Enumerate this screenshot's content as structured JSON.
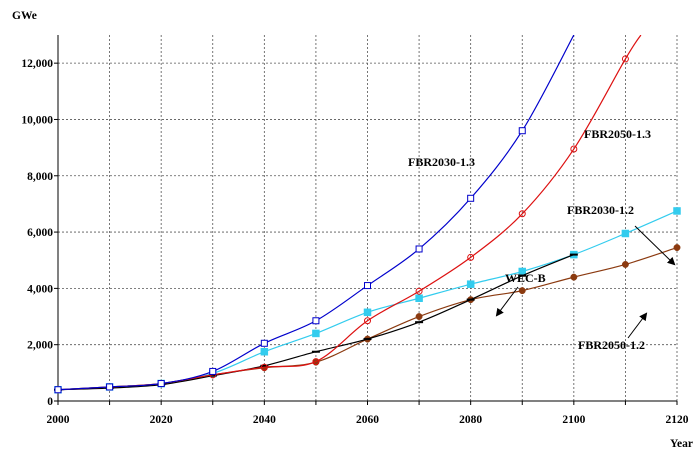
{
  "chart_data": {
    "type": "line",
    "ylabel": "GWe",
    "xlabel": "Year",
    "xlim": [
      2000,
      2120
    ],
    "ylim": [
      0,
      13000
    ],
    "x_ticks": [
      2000,
      2010,
      2020,
      2030,
      2040,
      2050,
      2060,
      2070,
      2080,
      2090,
      2100,
      2110,
      2120
    ],
    "x_tick_labels": [
      "2000",
      "2020",
      "2040",
      "2060",
      "2080",
      "2100",
      "2120"
    ],
    "y_ticks": [
      0,
      2000,
      4000,
      6000,
      8000,
      10000,
      12000
    ],
    "y_tick_labels": [
      "0",
      "2,000",
      "4,000",
      "6,000",
      "8,000",
      "10,000",
      "12,000"
    ],
    "grid": true,
    "series": [
      {
        "name": "FBR2030-1.3",
        "color": "#0000cc",
        "marker": "open-square",
        "x": [
          2000,
          2010,
          2020,
          2030,
          2040,
          2050,
          2060,
          2070,
          2080,
          2090,
          2100
        ],
        "y": [
          400,
          500,
          620,
          1050,
          2050,
          2850,
          4100,
          5400,
          7200,
          9600,
          13000
        ]
      },
      {
        "name": "FBR2050-1.3",
        "color": "#dd1111",
        "marker": "open-circle",
        "x": [
          2000,
          2010,
          2020,
          2030,
          2040,
          2050,
          2060,
          2070,
          2080,
          2090,
          2100,
          2110,
          2113
        ],
        "y": [
          400,
          500,
          620,
          930,
          1200,
          1400,
          2850,
          3900,
          5100,
          6650,
          8950,
          12150,
          13000
        ]
      },
      {
        "name": "FBR2030-1.2",
        "color": "#33ccee",
        "marker": "filled-square",
        "x": [
          2000,
          2010,
          2020,
          2030,
          2040,
          2050,
          2060,
          2070,
          2080,
          2090,
          2100,
          2110,
          2120
        ],
        "y": [
          400,
          500,
          620,
          980,
          1750,
          2400,
          3150,
          3650,
          4150,
          4600,
          5200,
          5950,
          6750
        ]
      },
      {
        "name": "FBR2050-1.2",
        "color": "#8b3a10",
        "marker": "filled-circle",
        "x": [
          2000,
          2010,
          2020,
          2030,
          2040,
          2050,
          2060,
          2070,
          2080,
          2090,
          2100,
          2110,
          2120
        ],
        "y": [
          400,
          500,
          620,
          930,
          1180,
          1380,
          2200,
          3000,
          3600,
          3920,
          4400,
          4850,
          5450
        ]
      },
      {
        "name": "WEC-B",
        "color": "#000000",
        "marker": "dash",
        "x": [
          2000,
          2010,
          2020,
          2030,
          2040,
          2050,
          2060,
          2070,
          2080,
          2090,
          2100
        ],
        "y": [
          400,
          460,
          580,
          900,
          1250,
          1750,
          2200,
          2800,
          3600,
          4450,
          5200
        ]
      }
    ],
    "annotations": [
      {
        "text": "FBR2030-1.3",
        "series": 0
      },
      {
        "text": "FBR2050-1.3",
        "series": 1
      },
      {
        "text": "FBR2030-1.2",
        "series": 2
      },
      {
        "text": "WEC-B",
        "series": 4
      },
      {
        "text": "FBR2050-1.2",
        "series": 3
      }
    ]
  }
}
